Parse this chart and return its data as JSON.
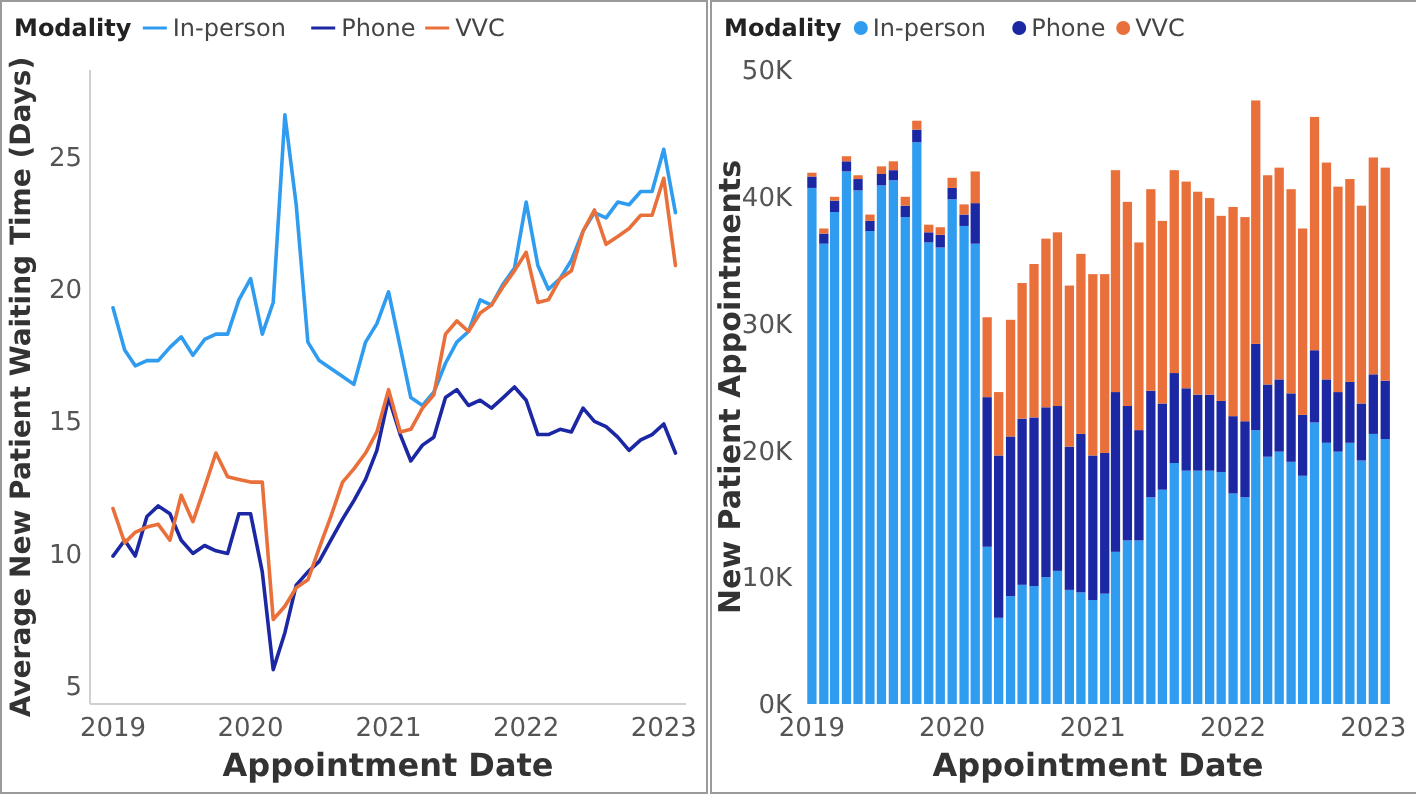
{
  "chart_data": [
    {
      "type": "line",
      "xlabel": "Appointment Date",
      "ylabel": "Average New Patient Waiting Time (Days)",
      "legend_title": "Modality",
      "legend": "top left",
      "grid": false,
      "x": [
        "2019-01",
        "2019-02",
        "2019-03",
        "2019-04",
        "2019-05",
        "2019-06",
        "2019-07",
        "2019-08",
        "2019-09",
        "2019-10",
        "2019-11",
        "2019-12",
        "2020-01",
        "2020-02",
        "2020-03",
        "2020-04",
        "2020-05",
        "2020-06",
        "2020-07",
        "2020-08",
        "2020-09",
        "2020-10",
        "2020-11",
        "2020-12",
        "2021-01",
        "2021-02",
        "2021-03",
        "2021-04",
        "2021-05",
        "2021-06",
        "2021-07",
        "2021-08",
        "2021-09",
        "2021-10",
        "2021-11",
        "2021-12",
        "2022-01",
        "2022-02",
        "2022-03",
        "2022-04",
        "2022-05",
        "2022-06",
        "2022-07",
        "2022-08",
        "2022-09",
        "2022-10",
        "2022-11",
        "2022-12",
        "2023-01",
        "2023-02"
      ],
      "xticks": [
        {
          "value": "2019",
          "label": "2019"
        },
        {
          "value": "2020",
          "label": "2020"
        },
        {
          "value": "2021",
          "label": "2021"
        },
        {
          "value": "2022",
          "label": "2022"
        },
        {
          "value": "2023",
          "label": "2023"
        }
      ],
      "xlim": [
        "2018-11",
        "2023-03"
      ],
      "ylim": [
        4.3,
        28.3
      ],
      "yticks": [
        5,
        10,
        15,
        20,
        25
      ],
      "series": [
        {
          "name": "In-person",
          "color": "#2f9cf0",
          "values": [
            19.3,
            17.7,
            17.1,
            17.3,
            17.3,
            17.8,
            18.2,
            17.5,
            18.1,
            18.3,
            18.3,
            19.6,
            20.4,
            18.3,
            19.5,
            26.6,
            23.2,
            18.0,
            17.3,
            17.0,
            16.7,
            16.4,
            18.0,
            18.7,
            19.9,
            17.8,
            15.9,
            15.6,
            16.1,
            17.2,
            18.0,
            18.4,
            19.6,
            19.4,
            20.2,
            20.8,
            23.3,
            20.9,
            20.0,
            20.4,
            21.1,
            22.2,
            22.9,
            22.7,
            23.3,
            23.2,
            23.7,
            23.7,
            25.3,
            22.9
          ]
        },
        {
          "name": "Phone",
          "color": "#1c27a3",
          "values": [
            9.9,
            10.5,
            9.9,
            11.4,
            11.8,
            11.5,
            10.5,
            10.0,
            10.3,
            10.1,
            10.0,
            11.5,
            11.5,
            9.3,
            5.6,
            7.0,
            8.8,
            9.3,
            9.7,
            10.5,
            11.3,
            12.0,
            12.8,
            13.9,
            15.9,
            14.5,
            13.5,
            14.1,
            14.4,
            15.9,
            16.2,
            15.6,
            15.8,
            15.5,
            15.9,
            16.3,
            15.8,
            14.5,
            14.5,
            14.7,
            14.6,
            15.5,
            15.0,
            14.8,
            14.4,
            13.9,
            14.3,
            14.5,
            14.9,
            13.8
          ]
        },
        {
          "name": "VVC",
          "color": "#e9703a",
          "values": [
            11.7,
            10.4,
            10.8,
            11.0,
            11.1,
            10.5,
            12.2,
            11.2,
            12.5,
            13.8,
            12.9,
            12.8,
            12.7,
            12.7,
            7.5,
            8.0,
            8.7,
            9.0,
            10.2,
            11.4,
            12.7,
            13.2,
            13.8,
            14.6,
            16.2,
            14.6,
            14.7,
            15.5,
            16.0,
            18.3,
            18.8,
            18.4,
            19.1,
            19.4,
            20.1,
            20.7,
            21.4,
            19.5,
            19.6,
            20.4,
            20.7,
            22.2,
            23.0,
            21.7,
            22.0,
            22.3,
            22.8,
            22.8,
            24.2,
            20.9
          ]
        }
      ]
    },
    {
      "type": "bar",
      "stacked": true,
      "xlabel": "Appointment Date",
      "ylabel": "New Patient Appointments",
      "legend_title": "Modality",
      "legend": "top left",
      "grid": false,
      "x": [
        "2019-01",
        "2019-02",
        "2019-03",
        "2019-04",
        "2019-05",
        "2019-06",
        "2019-07",
        "2019-08",
        "2019-09",
        "2019-10",
        "2019-11",
        "2019-12",
        "2020-01",
        "2020-02",
        "2020-03",
        "2020-04",
        "2020-05",
        "2020-06",
        "2020-07",
        "2020-08",
        "2020-09",
        "2020-10",
        "2020-11",
        "2020-12",
        "2021-01",
        "2021-02",
        "2021-03",
        "2021-04",
        "2021-05",
        "2021-06",
        "2021-07",
        "2021-08",
        "2021-09",
        "2021-10",
        "2021-11",
        "2021-12",
        "2022-01",
        "2022-02",
        "2022-03",
        "2022-04",
        "2022-05",
        "2022-06",
        "2022-07",
        "2022-08",
        "2022-09",
        "2022-10",
        "2022-11",
        "2022-12",
        "2023-01",
        "2023-02"
      ],
      "xlim": [
        "2018-12",
        "2023-03"
      ],
      "xticks": [
        {
          "value": "2019",
          "label": "2019"
        },
        {
          "value": "2020",
          "label": "2020"
        },
        {
          "value": "2021",
          "label": "2021"
        },
        {
          "value": "2022",
          "label": "2022"
        },
        {
          "value": "2023",
          "label": "2023"
        }
      ],
      "ylim": [
        0,
        50000
      ],
      "yticks": [
        {
          "value": 0,
          "label": "0K"
        },
        {
          "value": 10000,
          "label": "10K"
        },
        {
          "value": 20000,
          "label": "20K"
        },
        {
          "value": 30000,
          "label": "30K"
        },
        {
          "value": 40000,
          "label": "40K"
        },
        {
          "value": 50000,
          "label": "50K"
        }
      ],
      "series": [
        {
          "name": "In-person",
          "color": "#2f9cf0",
          "values": [
            40700,
            36300,
            38800,
            42000,
            40500,
            37300,
            40900,
            41300,
            38400,
            44300,
            36400,
            36000,
            39800,
            37700,
            36300,
            12400,
            6800,
            8500,
            9400,
            9300,
            10000,
            10500,
            9000,
            8800,
            8200,
            8700,
            12000,
            12900,
            12900,
            16300,
            16900,
            19000,
            18400,
            18400,
            18400,
            18300,
            16600,
            16300,
            21600,
            19500,
            19900,
            19100,
            18000,
            22200,
            20600,
            19900,
            20600,
            19200,
            21300,
            20900
          ]
        },
        {
          "name": "Phone",
          "color": "#1c27a3",
          "values": [
            900,
            800,
            900,
            800,
            900,
            800,
            900,
            800,
            900,
            1000,
            800,
            1000,
            900,
            900,
            3200,
            11800,
            12800,
            12600,
            13100,
            13300,
            13400,
            13000,
            11300,
            12500,
            11400,
            11100,
            12600,
            10600,
            8700,
            8400,
            6800,
            7100,
            6500,
            6000,
            6000,
            5600,
            6100,
            6000,
            6800,
            5700,
            5700,
            5400,
            4800,
            5700,
            5000,
            4700,
            4800,
            4500,
            4700,
            4600
          ]
        },
        {
          "name": "VVC",
          "color": "#e9703a",
          "values": [
            300,
            400,
            300,
            400,
            300,
            500,
            600,
            700,
            700,
            700,
            600,
            600,
            800,
            800,
            2500,
            6300,
            5000,
            9200,
            10700,
            12100,
            13300,
            13700,
            12700,
            14200,
            14300,
            14100,
            17500,
            16100,
            14800,
            15900,
            14400,
            16000,
            16300,
            16000,
            15500,
            14600,
            16500,
            16100,
            19200,
            16500,
            16700,
            16100,
            14700,
            18400,
            17100,
            16200,
            16000,
            15600,
            17100,
            16800
          ]
        }
      ]
    }
  ]
}
